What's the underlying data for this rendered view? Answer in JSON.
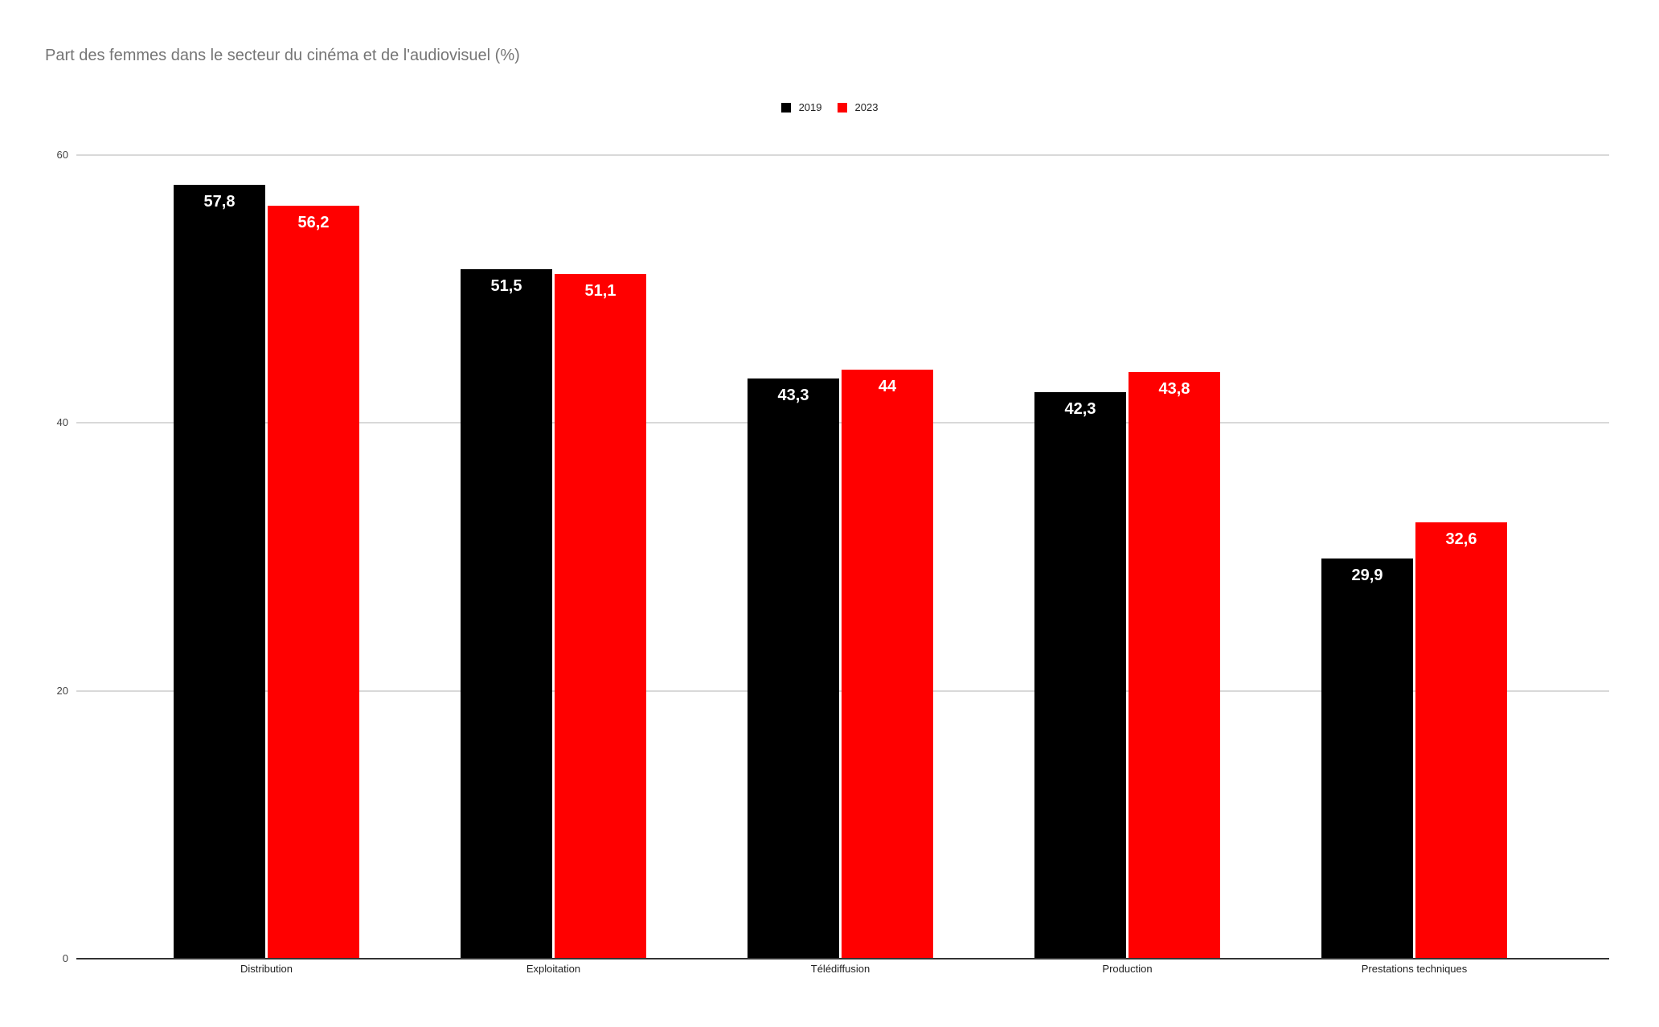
{
  "title": "Part des femmes dans le secteur du cinéma et de l'audiovisuel (%)",
  "legend": {
    "items": [
      {
        "label": "2019",
        "color": "#000000"
      },
      {
        "label": "2023",
        "color": "#ff0000"
      }
    ]
  },
  "y_axis": {
    "tick_labels": [
      "0",
      "20",
      "40",
      "60"
    ]
  },
  "chart_data": {
    "type": "bar",
    "title": "Part des femmes dans le secteur du cinéma et de l'audiovisuel (%)",
    "categories": [
      "Distribution",
      "Exploitation",
      "Télédiffusion",
      "Production",
      "Prestations techniques"
    ],
    "series": [
      {
        "name": "2019",
        "color": "#000000",
        "values": [
          57.8,
          51.5,
          43.3,
          42.3,
          29.9
        ],
        "data_labels": [
          "57,8",
          "51,5",
          "43,3",
          "42,3",
          "29,9"
        ]
      },
      {
        "name": "2023",
        "color": "#ff0000",
        "values": [
          56.2,
          51.1,
          44,
          43.8,
          32.6
        ],
        "data_labels": [
          "56,2",
          "51,1",
          "44",
          "43,8",
          "32,6"
        ]
      }
    ],
    "xlabel": "",
    "ylabel": "",
    "ylim": [
      0,
      60
    ],
    "yticks": [
      0,
      20,
      40,
      60
    ],
    "grid": true,
    "legend_position": "top-center",
    "data_label_color": "#ffffff"
  },
  "colors": {
    "background": "#ffffff",
    "title": "#757575",
    "gridline": "#d9d9d9",
    "axis_line": "#333333",
    "ytick_label": "#444444",
    "category_label": "#222222",
    "series_2019": "#000000",
    "series_2023": "#ff0000"
  }
}
